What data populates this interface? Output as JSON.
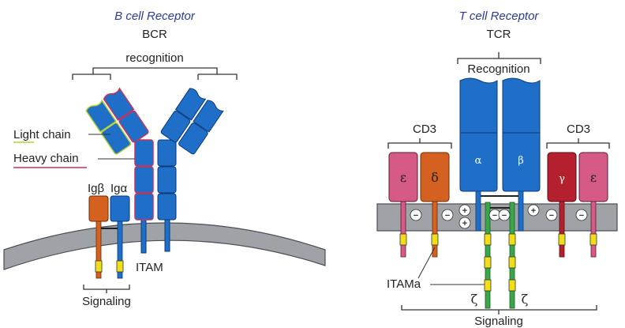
{
  "bcr": {
    "title": "B cell Receptor",
    "abbr": "BCR",
    "recognition": "recognition",
    "light_chain": "Light chain",
    "heavy_chain": "Heavy chain",
    "ig_beta": "Igβ",
    "ig_alpha": "Igα",
    "itam": "ITAM",
    "signaling": "Signaling"
  },
  "tcr": {
    "title": "T cell Receptor",
    "abbr": "TCR",
    "recognition": "Recognition",
    "cd3_left": "CD3",
    "cd3_right": "CD3",
    "epsilon": "ε",
    "delta": "δ",
    "alpha": "α",
    "beta": "β",
    "gamma": "γ",
    "epsilon2": "ε",
    "itam": "ITAMa",
    "zeta1": "ζ",
    "zeta2": "ζ",
    "signaling": "Signaling",
    "charges": [
      "−",
      "−",
      "+",
      "+",
      "−",
      "−",
      "+",
      "−",
      "−"
    ]
  },
  "colors": {
    "ig_domain": "#1f6fc9",
    "ig_domain_stroke": "#0b3a78",
    "heavy_outline": "#c8325a",
    "light_outline": "#b8d23a",
    "membrane": "#9fa3a8",
    "membrane_stroke": "#4a4e55",
    "ig_beta": "#d4611f",
    "epsilon": "#d65a86",
    "delta": "#d4611f",
    "gamma": "#b4202e",
    "zeta": "#3aa64a",
    "itam": "#f0df18",
    "title": "#2a3a9a"
  }
}
